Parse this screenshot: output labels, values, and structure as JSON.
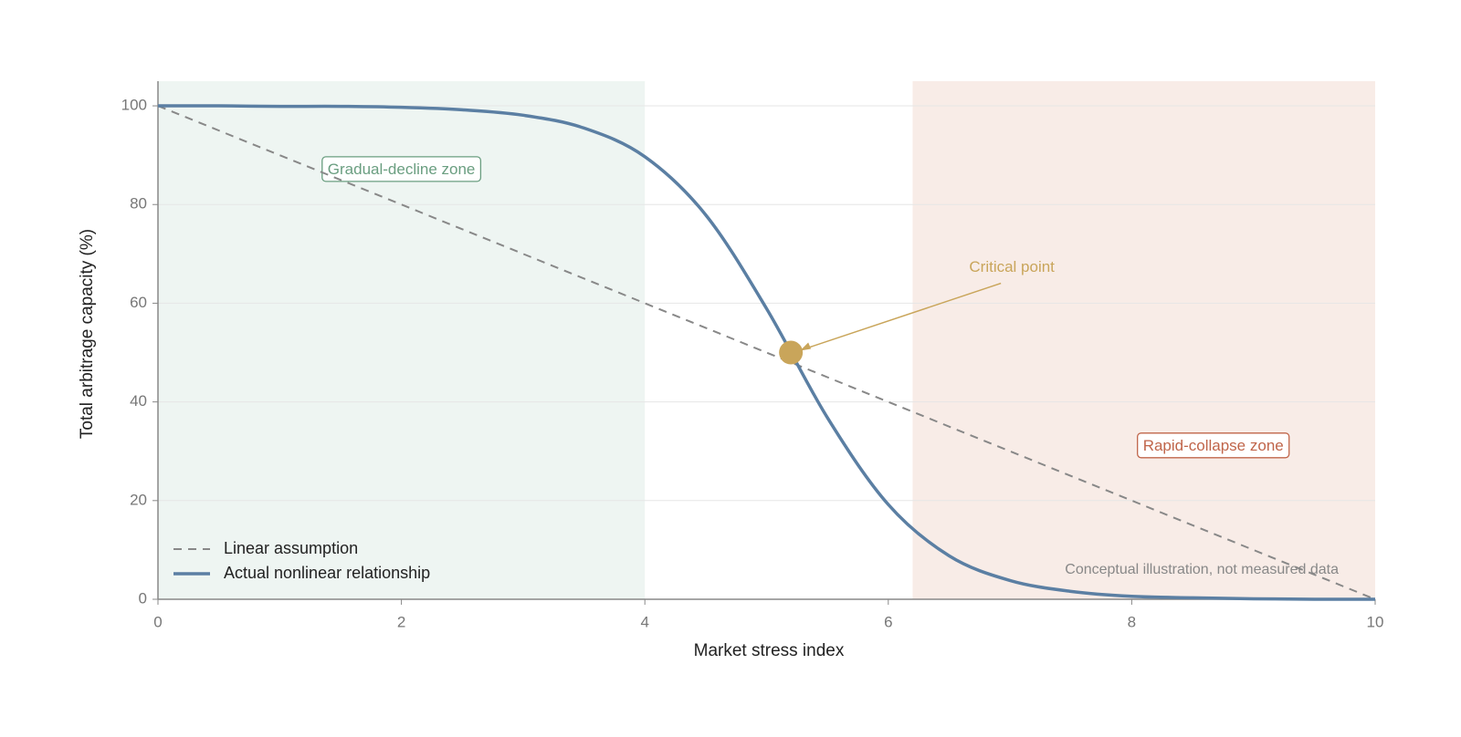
{
  "chart_data": {
    "type": "line",
    "xlabel": "Market stress index",
    "ylabel": "Total arbitrage capacity (%)",
    "xlim": [
      0,
      10
    ],
    "xticks": [
      0,
      2,
      4,
      6,
      8,
      10
    ],
    "ylim": [
      0,
      105
    ],
    "yticks": [
      0,
      20,
      40,
      60,
      80,
      100
    ],
    "grid": true,
    "legend": "lower left",
    "series": [
      {
        "name": "Linear assumption",
        "color": "#888888",
        "dash": true,
        "x": [
          0,
          10
        ],
        "values": [
          100,
          0
        ]
      },
      {
        "name": "Actual nonlinear relationship",
        "color": "#5b7fa3",
        "dash": false,
        "x": [
          0,
          0.5,
          1,
          1.5,
          2,
          2.5,
          3,
          3.5,
          4,
          4.5,
          5,
          5.5,
          6,
          6.5,
          7,
          7.5,
          8,
          8.5,
          9,
          9.5,
          10
        ],
        "values": [
          100.0,
          100.0,
          99.9,
          99.9,
          99.7,
          99.2,
          98.1,
          95.5,
          89.7,
          77.9,
          58.9,
          36.8,
          19.2,
          8.8,
          3.8,
          1.6,
          0.6,
          0.3,
          0.1,
          0.0,
          0.0
        ]
      }
    ],
    "zones": [
      {
        "label": "Gradual-decline zone",
        "x": [
          0,
          4
        ],
        "color": "#eef5f2",
        "label_color": "#6a9e80"
      },
      {
        "label": "Rapid-collapse zone",
        "x": [
          6.2,
          10
        ],
        "color": "#f8ece7",
        "label_color": "#c0654a"
      }
    ],
    "annotations": [
      {
        "text": "Critical point",
        "x": 5.2,
        "y": 50,
        "color": "#c9a55a"
      }
    ],
    "note": "Conceptual illustration, not measured data"
  }
}
